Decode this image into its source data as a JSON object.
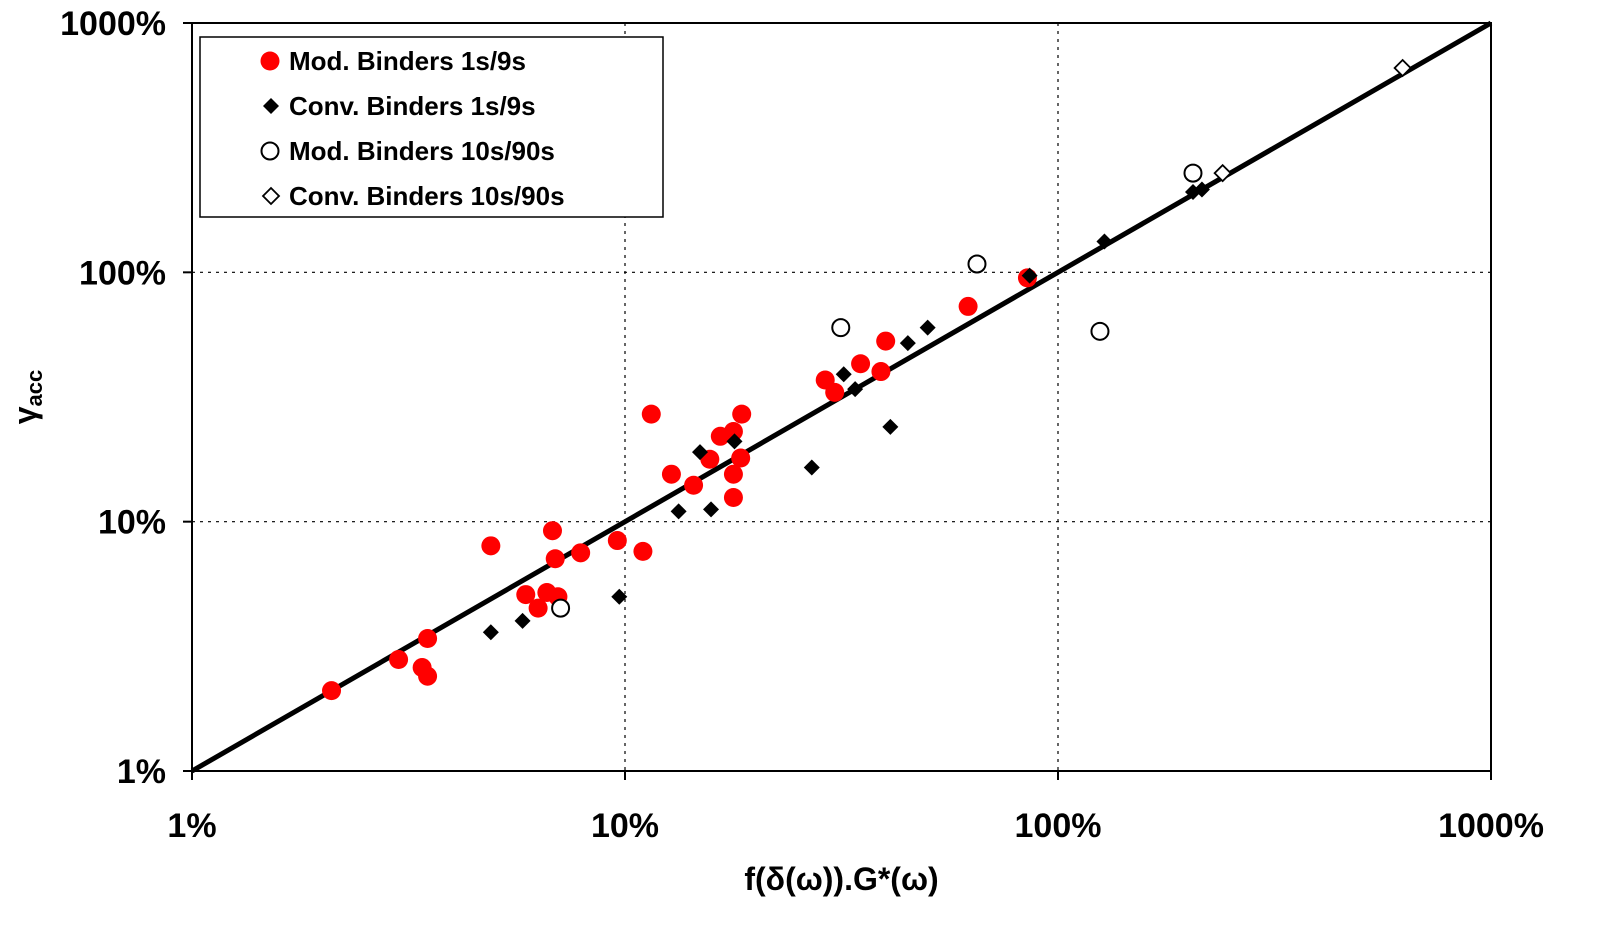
{
  "chart_data": {
    "type": "scatter",
    "title": "",
    "xlabel": "f(δ(ω)).G*(ω)",
    "ylabel": "γacc",
    "ylabel_main": "γ",
    "ylabel_sub": "acc",
    "xscale": "log",
    "yscale": "log",
    "xlim": [
      1,
      1000
    ],
    "ylim": [
      1,
      1000
    ],
    "x_ticks": [
      1,
      10,
      100,
      1000
    ],
    "y_ticks": [
      1,
      10,
      100,
      1000
    ],
    "x_tick_labels": [
      "1%",
      "10%",
      "100%",
      "1000%"
    ],
    "y_tick_labels": [
      "1%",
      "10%",
      "100%",
      "1000%"
    ],
    "grid": true,
    "grid_style": "dotted",
    "legend_position": "top-left",
    "line_of_equality": {
      "x": [
        1,
        1000
      ],
      "y": [
        1,
        1000
      ],
      "color": "#000000"
    },
    "series": [
      {
        "name": "Mod. Binders 1s/9s",
        "marker": "filled-circle",
        "color": "#ff0000",
        "points": [
          [
            2.1,
            2.1
          ],
          [
            3.0,
            2.8
          ],
          [
            3.4,
            2.6
          ],
          [
            3.5,
            2.4
          ],
          [
            3.5,
            3.4
          ],
          [
            4.9,
            8.0
          ],
          [
            5.9,
            5.1
          ],
          [
            6.3,
            4.5
          ],
          [
            6.6,
            5.2
          ],
          [
            6.8,
            9.2
          ],
          [
            6.9,
            7.1
          ],
          [
            7.0,
            5.0
          ],
          [
            7.9,
            7.5
          ],
          [
            9.6,
            8.4
          ],
          [
            11.0,
            7.6
          ],
          [
            11.5,
            27.0
          ],
          [
            12.8,
            15.5
          ],
          [
            14.4,
            14.0
          ],
          [
            15.7,
            17.8
          ],
          [
            16.6,
            22.0
          ],
          [
            17.8,
            23.0
          ],
          [
            17.8,
            15.5
          ],
          [
            17.8,
            12.5
          ],
          [
            18.5,
            18.0
          ],
          [
            18.6,
            27.0
          ],
          [
            29.0,
            37.0
          ],
          [
            30.5,
            33.0
          ],
          [
            35.0,
            43.0
          ],
          [
            39.0,
            40.0
          ],
          [
            40.0,
            53.0
          ],
          [
            62.0,
            73.0
          ],
          [
            85.0,
            95.0
          ]
        ]
      },
      {
        "name": "Conv. Binders 1s/9s",
        "marker": "filled-diamond",
        "color": "#000000",
        "points": [
          [
            4.9,
            3.6
          ],
          [
            5.8,
            4.0
          ],
          [
            9.7,
            5.0
          ],
          [
            13.3,
            11.0
          ],
          [
            14.9,
            19.0
          ],
          [
            15.8,
            11.2
          ],
          [
            17.9,
            21.0
          ],
          [
            27.0,
            16.5
          ],
          [
            32.0,
            39.0
          ],
          [
            34.0,
            34.0
          ],
          [
            41.0,
            24.0
          ],
          [
            45.0,
            52.0
          ],
          [
            50.0,
            60.0
          ],
          [
            86.0,
            97.0
          ],
          [
            128.0,
            133.0
          ],
          [
            205.0,
            210.0
          ],
          [
            215.0,
            215.0
          ]
        ]
      },
      {
        "name": "Mod. Binders 10s/90s",
        "marker": "open-circle",
        "color": "#000000",
        "points": [
          [
            7.1,
            4.5
          ],
          [
            31.5,
            60.0
          ],
          [
            65.0,
            108.0
          ],
          [
            125.0,
            58.0
          ],
          [
            205.0,
            250.0
          ]
        ]
      },
      {
        "name": "Conv. Binders 10s/90s",
        "marker": "open-diamond",
        "color": "#000000",
        "points": [
          [
            240.0,
            250.0
          ],
          [
            625.0,
            660.0
          ]
        ]
      }
    ]
  }
}
